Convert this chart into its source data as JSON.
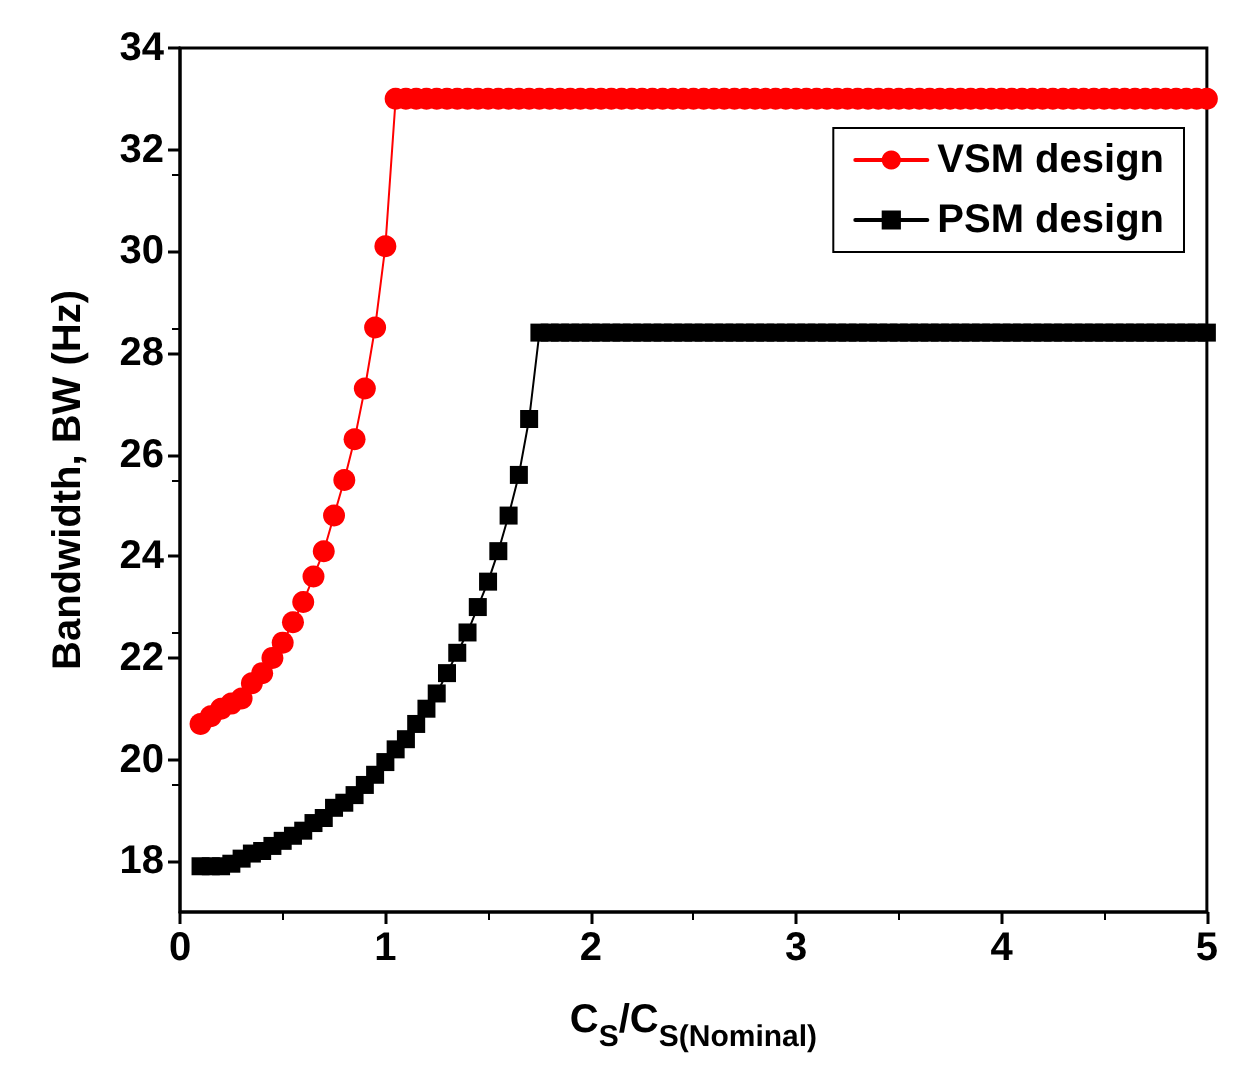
{
  "chart_data": {
    "type": "line",
    "xlabel": "C$_{S}$/C$_{S(Nominal)}$",
    "ylabel": "Bandwidth, BW (Hz)",
    "x": [
      0.1,
      0.15,
      0.2,
      0.25,
      0.3,
      0.35,
      0.4,
      0.45,
      0.5,
      0.55,
      0.6,
      0.65,
      0.7,
      0.75,
      0.8,
      0.85,
      0.9,
      0.95,
      1.0,
      1.05,
      1.1,
      1.15,
      1.2,
      1.25,
      1.3,
      1.35,
      1.4,
      1.45,
      1.5,
      1.55,
      1.6,
      1.65,
      1.7,
      1.75,
      1.8,
      1.85,
      1.9,
      1.95,
      2.0,
      2.05,
      2.1,
      2.15,
      2.2,
      2.25,
      2.3,
      2.35,
      2.4,
      2.45,
      2.5,
      2.55,
      2.6,
      2.65,
      2.7,
      2.75,
      2.8,
      2.85,
      2.9,
      2.95,
      3.0,
      3.05,
      3.1,
      3.15,
      3.2,
      3.25,
      3.3,
      3.35,
      3.4,
      3.45,
      3.5,
      3.55,
      3.6,
      3.65,
      3.7,
      3.75,
      3.8,
      3.85,
      3.9,
      3.95,
      4.0,
      4.05,
      4.1,
      4.15,
      4.2,
      4.25,
      4.3,
      4.35,
      4.4,
      4.45,
      4.5,
      4.55,
      4.6,
      4.65,
      4.7,
      4.75,
      4.8,
      4.85,
      4.9,
      4.95,
      5.0
    ],
    "series": [
      {
        "name": "VSM design",
        "color": "#ff0000",
        "marker": "circle",
        "values": [
          20.7,
          20.85,
          21.0,
          21.1,
          21.2,
          21.5,
          21.7,
          22.0,
          22.3,
          22.7,
          23.1,
          23.6,
          24.1,
          24.8,
          25.5,
          26.3,
          27.3,
          28.5,
          30.1,
          33,
          33,
          33,
          33,
          33,
          33,
          33,
          33,
          33,
          33,
          33,
          33,
          33,
          33,
          33,
          33,
          33,
          33,
          33,
          33,
          33,
          33,
          33,
          33,
          33,
          33,
          33,
          33,
          33,
          33,
          33,
          33,
          33,
          33,
          33,
          33,
          33,
          33,
          33,
          33,
          33,
          33,
          33,
          33,
          33,
          33,
          33,
          33,
          33,
          33,
          33,
          33,
          33,
          33,
          33,
          33,
          33,
          33,
          33,
          33,
          33,
          33,
          33,
          33,
          33,
          33,
          33,
          33,
          33,
          33,
          33,
          33,
          33,
          33,
          33,
          33,
          33,
          33,
          33,
          33
        ]
      },
      {
        "name": "PSM design",
        "color": "#000000",
        "marker": "square",
        "values": [
          17.9,
          17.9,
          17.9,
          17.95,
          18.05,
          18.15,
          18.2,
          18.3,
          18.4,
          18.5,
          18.6,
          18.75,
          18.85,
          19.05,
          19.15,
          19.3,
          19.5,
          19.7,
          19.95,
          20.2,
          20.4,
          20.7,
          21.0,
          21.3,
          21.7,
          22.1,
          22.5,
          23.0,
          23.5,
          24.1,
          24.8,
          25.6,
          26.7,
          28.4,
          28.4,
          28.4,
          28.4,
          28.4,
          28.4,
          28.4,
          28.4,
          28.4,
          28.4,
          28.4,
          28.4,
          28.4,
          28.4,
          28.4,
          28.4,
          28.4,
          28.4,
          28.4,
          28.4,
          28.4,
          28.4,
          28.4,
          28.4,
          28.4,
          28.4,
          28.4,
          28.4,
          28.4,
          28.4,
          28.4,
          28.4,
          28.4,
          28.4,
          28.4,
          28.4,
          28.4,
          28.4,
          28.4,
          28.4,
          28.4,
          28.4,
          28.4,
          28.4,
          28.4,
          28.4,
          28.4,
          28.4,
          28.4,
          28.4,
          28.4,
          28.4,
          28.4,
          28.4,
          28.4,
          28.4,
          28.4,
          28.4,
          28.4,
          28.4,
          28.4,
          28.4,
          28.4,
          28.4,
          28.4,
          28.4
        ]
      }
    ],
    "xlim": [
      0,
      5
    ],
    "xticks": [
      0,
      1,
      2,
      3,
      4,
      5
    ],
    "ylim": [
      17,
      34
    ],
    "yticks": [
      18,
      20,
      22,
      24,
      26,
      28,
      30,
      32,
      34
    ],
    "grid": false,
    "legend": "top right"
  }
}
